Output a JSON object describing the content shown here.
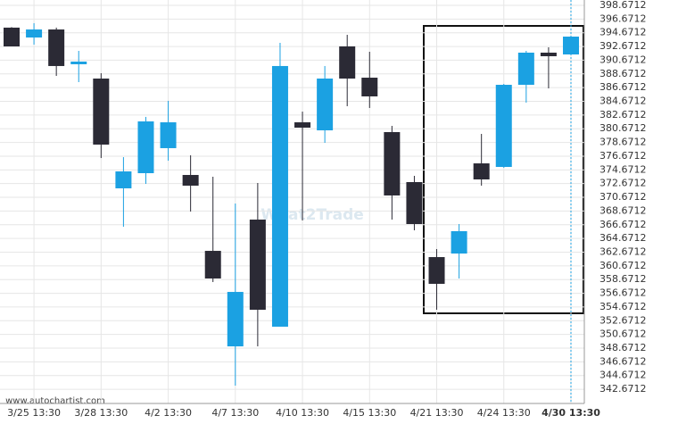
{
  "chart_data": {
    "type": "candlestick",
    "categories": [
      null,
      "3/25 13:30",
      null,
      null,
      "3/28 13:30",
      null,
      null,
      "4/2 13:30",
      null,
      null,
      "4/7 13:30",
      null,
      null,
      "4/10 13:30",
      null,
      null,
      "4/15 13:30",
      null,
      null,
      "4/21 13:30",
      null,
      null,
      "4/24 13:30",
      null,
      null,
      "4/30 13:30"
    ],
    "open": [
      395.42,
      393.98,
      395.15,
      390.08,
      387.99,
      371.98,
      374.19,
      377.84,
      373.93,
      362.86,
      348.93,
      367.42,
      351.8,
      381.61,
      380.44,
      392.68,
      388.12,
      380.18,
      372.89,
      361.95,
      362.47,
      375.62,
      375.1,
      387.08,
      391.77,
      391.51
    ],
    "high": [
      395.5,
      396.07,
      395.42,
      392.03,
      388.77,
      376.53,
      382.4,
      384.74,
      376.8,
      373.67,
      369.76,
      372.76,
      393.2,
      383.17,
      389.82,
      394.37,
      391.9,
      381.09,
      373.8,
      363.12,
      366.77,
      379.92,
      387.21,
      392.03,
      392.55,
      394.11
    ],
    "low": [
      392.68,
      392.94,
      388.38,
      387.47,
      376.4,
      366.38,
      372.63,
      376.01,
      368.59,
      358.31,
      343.2,
      348.93,
      351.8,
      367.29,
      378.62,
      383.96,
      383.7,
      367.42,
      365.86,
      354.27,
      358.83,
      372.37,
      374.97,
      384.48,
      386.56,
      391.51
    ],
    "close": [
      392.68,
      395.15,
      389.82,
      390.47,
      378.36,
      374.45,
      381.74,
      381.61,
      372.37,
      358.83,
      356.87,
      354.27,
      389.82,
      380.83,
      387.99,
      387.99,
      385.39,
      370.94,
      366.77,
      358.05,
      365.73,
      373.28,
      387.08,
      391.77,
      391.25,
      394.11
    ],
    "up_color": "#1ba1e2",
    "down_color": "#2b2a35",
    "ylim": [
      340.6,
      399.45
    ],
    "yticks": [
      342.6712,
      344.6712,
      346.6712,
      348.6712,
      350.6712,
      352.6712,
      354.6712,
      356.6712,
      358.6712,
      360.6712,
      362.6712,
      364.6712,
      366.6712,
      368.6712,
      370.6712,
      372.6712,
      374.6712,
      376.6712,
      378.6712,
      380.6712,
      382.6712,
      384.6712,
      386.6712,
      388.6712,
      390.6712,
      392.6712,
      394.6712,
      396.6712,
      398.6712
    ],
    "grid": true,
    "watermark": "What2Trade",
    "source": "www.autochartist.com"
  }
}
